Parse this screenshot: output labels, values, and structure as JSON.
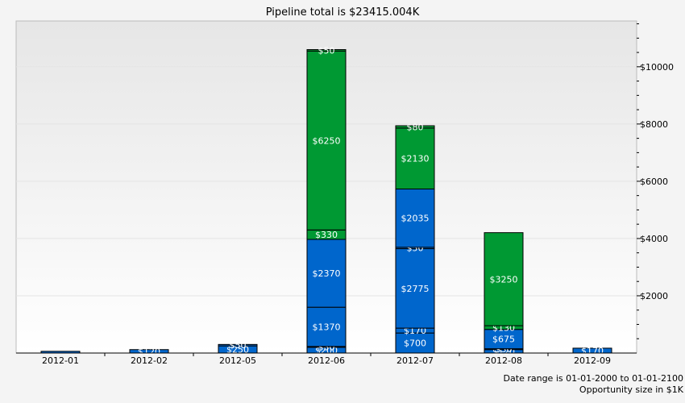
{
  "chart_data": {
    "type": "bar",
    "stacked": true,
    "title": "Pipeline total is $23415.004K",
    "categories": [
      "2012-01",
      "2012-02",
      "2012-05",
      "2012-06",
      "2012-07",
      "2012-08",
      "2012-09"
    ],
    "y_axis": {
      "position": "right",
      "ylim": [
        0,
        11600
      ],
      "ticks": [
        2000,
        4000,
        6000,
        8000,
        10000
      ],
      "tick_labels": [
        "$2000",
        "$4000",
        "$6000",
        "$8000",
        "$10000"
      ],
      "minor_step": 500
    },
    "grid": true,
    "colors": {
      "blue": "#0066cc",
      "green": "#009933",
      "plot_bg_top": "#e6e6e6",
      "plot_bg_bottom": "#ffffff"
    },
    "stacks": [
      [
        {
          "value": 60,
          "color": "blue",
          "label": ""
        }
      ],
      [
        {
          "value": 120,
          "color": "blue",
          "label": "$120"
        }
      ],
      [
        {
          "value": 250,
          "color": "blue",
          "label": "$250"
        },
        {
          "value": 50,
          "color": "blue",
          "label": "$50"
        }
      ],
      [
        {
          "value": 200,
          "color": "blue",
          "label": "$200"
        },
        {
          "value": 30,
          "color": "blue",
          "label": "$30"
        },
        {
          "value": 1370,
          "color": "blue",
          "label": "$1370"
        },
        {
          "value": 2370,
          "color": "blue",
          "label": "$2370"
        },
        {
          "value": 330,
          "color": "green",
          "label": "$330"
        },
        {
          "value": 6250,
          "color": "green",
          "label": "$6250"
        },
        {
          "value": 50,
          "color": "green",
          "label": "$50"
        }
      ],
      [
        {
          "value": 700,
          "color": "blue",
          "label": "$700"
        },
        {
          "value": 170,
          "color": "blue",
          "label": "$170"
        },
        {
          "value": 2775,
          "color": "blue",
          "label": "$2775"
        },
        {
          "value": 50,
          "color": "blue",
          "label": "$50"
        },
        {
          "value": 2035,
          "color": "blue",
          "label": "$2035"
        },
        {
          "value": 2130,
          "color": "green",
          "label": "$2130"
        },
        {
          "value": 80,
          "color": "green",
          "label": "$80"
        }
      ],
      [
        {
          "value": 120,
          "color": "blue",
          "label": "$120"
        },
        {
          "value": 30,
          "color": "blue",
          "label": "$30"
        },
        {
          "value": 675,
          "color": "blue",
          "label": "$675"
        },
        {
          "value": 130,
          "color": "green",
          "label": "$130"
        },
        {
          "value": 3250,
          "color": "green",
          "label": "$3250"
        }
      ],
      [
        {
          "value": 170,
          "color": "blue",
          "label": "$170"
        }
      ]
    ]
  },
  "footer": {
    "date_range": "Date range is 01-01-2000 to 01-01-2100",
    "size_note": "Opportunity size in $1K"
  }
}
